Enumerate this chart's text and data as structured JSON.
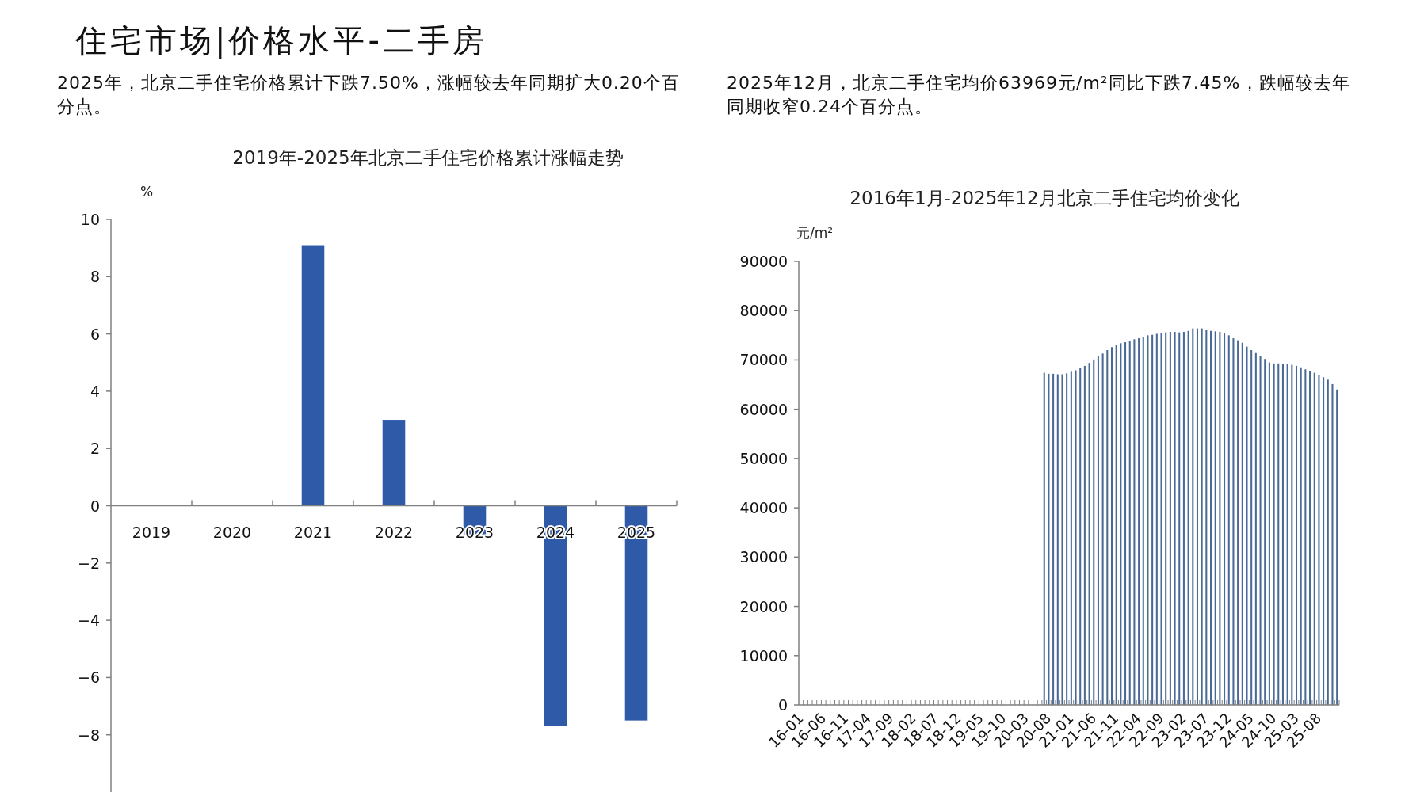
{
  "chart_data": [
    {
      "type": "bar",
      "title": "2019年-2025年北京二手住宅价格累计涨幅走势",
      "ylabel": "%",
      "annotations": [
        "住宅市场|价格水平-二手房",
        "2025年，北京二手住宅价格累计下跌7.50%，涨幅较去年同期扩大0.20个百分点。"
      ],
      "categories": [
        "2019",
        "2020",
        "2021",
        "2022",
        "2023",
        "2024",
        "2025"
      ],
      "values": [
        null,
        null,
        9.1,
        3.0,
        -1.0,
        -7.7,
        -7.5
      ],
      "color": "#2e5aa8",
      "ylim": [
        -10,
        10
      ],
      "yticks": [
        -8,
        -6,
        -4,
        -2,
        0,
        2,
        4,
        6,
        8,
        10
      ]
    },
    {
      "type": "bar",
      "title": "2016年1月-2025年12月北京二手住宅均价变化",
      "ylabel": "元/m²",
      "annotations": [
        "2025年12月，北京二手住宅均价63969元/m²同比下跌7.45%，跌幅较去年同期收窄0.24个百分点。"
      ],
      "categories": [
        "16-01",
        null,
        null,
        null,
        null,
        "16-06",
        null,
        null,
        null,
        null,
        "16-11",
        null,
        null,
        null,
        null,
        "17-04",
        null,
        null,
        null,
        null,
        "17-09",
        null,
        null,
        null,
        null,
        "18-02",
        null,
        null,
        null,
        null,
        "18-07",
        null,
        null,
        null,
        null,
        "18-12",
        null,
        null,
        null,
        null,
        "19-05",
        null,
        null,
        null,
        null,
        "19-10",
        null,
        null,
        null,
        null,
        "20-03",
        null,
        null,
        null,
        null,
        "20-08",
        null,
        null,
        null,
        null,
        "21-01",
        null,
        null,
        null,
        null,
        "21-06",
        null,
        null,
        null,
        null,
        "21-11",
        null,
        null,
        null,
        null,
        "22-04",
        null,
        null,
        null,
        null,
        "22-09",
        null,
        null,
        null,
        null,
        "23-02",
        null,
        null,
        null,
        null,
        "23-07",
        null,
        null,
        null,
        null,
        "23-12",
        null,
        null,
        null,
        null,
        "24-05",
        null,
        null,
        null,
        null,
        "24-10",
        null,
        null,
        null,
        null,
        "25-03",
        null,
        null,
        null,
        null,
        "25-08",
        null,
        null,
        null,
        null
      ],
      "values": [
        null,
        null,
        null,
        null,
        null,
        null,
        null,
        null,
        null,
        null,
        null,
        null,
        null,
        null,
        null,
        null,
        null,
        null,
        null,
        null,
        null,
        null,
        null,
        null,
        null,
        null,
        null,
        null,
        null,
        null,
        null,
        null,
        null,
        null,
        null,
        null,
        null,
        null,
        null,
        null,
        null,
        null,
        null,
        null,
        null,
        null,
        null,
        null,
        null,
        null,
        null,
        null,
        null,
        null,
        67400,
        67200,
        67200,
        67100,
        67100,
        67300,
        67600,
        67900,
        68400,
        68800,
        69400,
        70100,
        70700,
        71300,
        72000,
        72600,
        73100,
        73400,
        73600,
        73900,
        74200,
        74400,
        74700,
        75000,
        75100,
        75300,
        75500,
        75600,
        75700,
        75700,
        75600,
        75700,
        75900,
        76400,
        76400,
        76400,
        76100,
        75900,
        75800,
        75700,
        75400,
        75000,
        74400,
        74000,
        73500,
        72700,
        72000,
        71400,
        70800,
        70200,
        69500,
        69300,
        69300,
        69200,
        69100,
        69000,
        68800,
        68500,
        68100,
        67800,
        67400,
        66900,
        66500,
        66000,
        65100,
        64000
      ],
      "color": "#4a6a96",
      "ylim": [
        0,
        90000
      ],
      "yticks": [
        0,
        10000,
        20000,
        30000,
        40000,
        50000,
        60000,
        70000,
        80000,
        90000
      ]
    }
  ]
}
